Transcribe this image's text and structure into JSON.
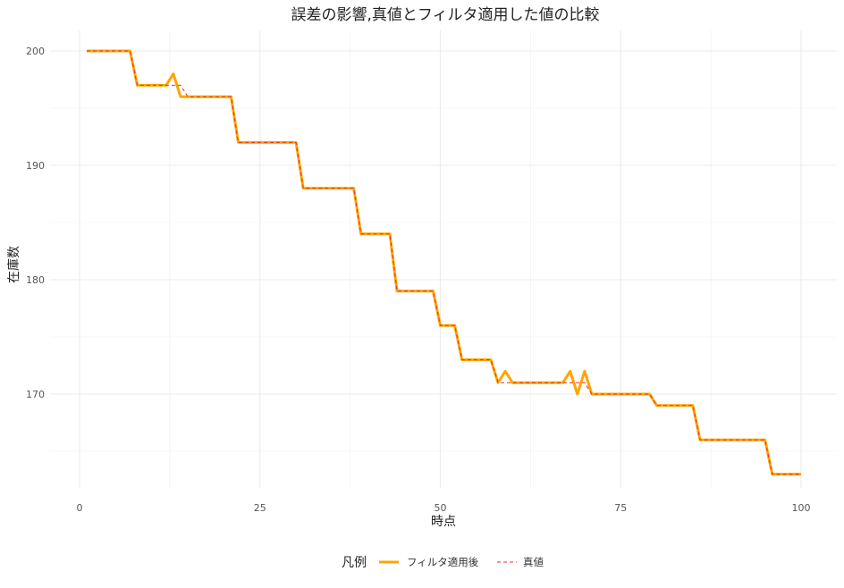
{
  "chart_data": {
    "type": "line",
    "title": "誤差の影響,真値とフィルタ適用した値の比較",
    "xlabel": "時点",
    "ylabel": "在庫数",
    "xlim": [
      0,
      100
    ],
    "ylim": [
      160,
      202
    ],
    "x_ticks": [
      "0",
      "25",
      "50",
      "75",
      "100"
    ],
    "y_ticks": [
      "170",
      "180",
      "190",
      "200"
    ],
    "grid": true,
    "legend_title": "凡例",
    "legend_position": "bottom",
    "series": [
      {
        "name": "フィルタ適用後",
        "color": "#FFA500",
        "style": "solid",
        "x": [
          1,
          2,
          3,
          4,
          5,
          6,
          7,
          8,
          9,
          10,
          11,
          12,
          13,
          14,
          15,
          16,
          17,
          18,
          19,
          20,
          21,
          22,
          23,
          24,
          25,
          26,
          27,
          28,
          29,
          30,
          31,
          32,
          33,
          34,
          35,
          36,
          37,
          38,
          39,
          40,
          41,
          42,
          43,
          44,
          45,
          46,
          47,
          48,
          49,
          50,
          51,
          52,
          53,
          54,
          55,
          56,
          57,
          58,
          59,
          60,
          61,
          62,
          63,
          64,
          65,
          66,
          67,
          68,
          69,
          70,
          71,
          72,
          73,
          74,
          75,
          76,
          77,
          78,
          79,
          80,
          81,
          82,
          83,
          84,
          85,
          86,
          87,
          88,
          89,
          90,
          91,
          92,
          93,
          94,
          95,
          96,
          97,
          98,
          99,
          100
        ],
        "values": [
          200,
          200,
          200,
          200,
          200,
          200,
          200,
          197,
          197,
          197,
          197,
          197,
          198,
          196,
          196,
          196,
          196,
          196,
          196,
          196,
          196,
          192,
          192,
          192,
          192,
          192,
          192,
          192,
          192,
          192,
          188,
          188,
          188,
          188,
          188,
          188,
          188,
          188,
          184,
          184,
          184,
          184,
          184,
          179,
          179,
          179,
          179,
          179,
          179,
          176,
          176,
          176,
          173,
          173,
          173,
          173,
          173,
          171,
          172,
          171,
          171,
          171,
          171,
          171,
          171,
          171,
          171,
          172,
          170,
          172,
          170,
          170,
          170,
          170,
          170,
          170,
          170,
          170,
          170,
          169,
          169,
          169,
          169,
          169,
          169,
          166,
          166,
          166,
          166,
          166,
          166,
          166,
          166,
          166,
          166,
          163,
          163,
          163,
          163,
          163
        ]
      },
      {
        "name": "真値",
        "color": "#E4302F",
        "style": "dashed",
        "x": [
          1,
          2,
          3,
          4,
          5,
          6,
          7,
          8,
          9,
          10,
          11,
          12,
          13,
          14,
          15,
          16,
          17,
          18,
          19,
          20,
          21,
          22,
          23,
          24,
          25,
          26,
          27,
          28,
          29,
          30,
          31,
          32,
          33,
          34,
          35,
          36,
          37,
          38,
          39,
          40,
          41,
          42,
          43,
          44,
          45,
          46,
          47,
          48,
          49,
          50,
          51,
          52,
          53,
          54,
          55,
          56,
          57,
          58,
          59,
          60,
          61,
          62,
          63,
          64,
          65,
          66,
          67,
          68,
          69,
          70,
          71,
          72,
          73,
          74,
          75,
          76,
          77,
          78,
          79,
          80,
          81,
          82,
          83,
          84,
          85,
          86,
          87,
          88,
          89,
          90,
          91,
          92,
          93,
          94,
          95,
          96,
          97,
          98,
          99,
          100
        ],
        "values": [
          200,
          200,
          200,
          200,
          200,
          200,
          200,
          197,
          197,
          197,
          197,
          197,
          197,
          197,
          196,
          196,
          196,
          196,
          196,
          196,
          196,
          192,
          192,
          192,
          192,
          192,
          192,
          192,
          192,
          192,
          188,
          188,
          188,
          188,
          188,
          188,
          188,
          188,
          184,
          184,
          184,
          184,
          184,
          179,
          179,
          179,
          179,
          179,
          179,
          176,
          176,
          176,
          173,
          173,
          173,
          173,
          173,
          171,
          171,
          171,
          171,
          171,
          171,
          171,
          171,
          171,
          171,
          171,
          171,
          171,
          170,
          170,
          170,
          170,
          170,
          170,
          170,
          170,
          170,
          169,
          169,
          169,
          169,
          169,
          169,
          166,
          166,
          166,
          166,
          166,
          166,
          166,
          166,
          166,
          166,
          163,
          163,
          163,
          163,
          163
        ]
      }
    ]
  }
}
